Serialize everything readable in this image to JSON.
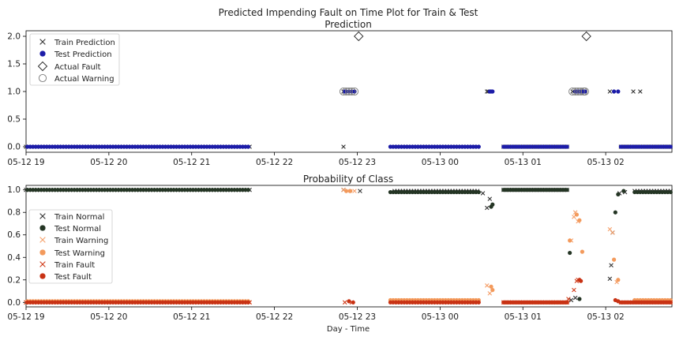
{
  "figure_title": "Predicted Impending Fault on Time Plot for Train & Test",
  "colors": {
    "train_prediction": "#333333",
    "test_prediction": "#1c1ca8",
    "actual_fault": "#333333",
    "actual_warning": "#7a7a7a",
    "train_normal": "#333333",
    "test_normal": "#243524",
    "train_warning": "#f5a06b",
    "test_warning": "#f39a5c",
    "train_fault": "#d03a18",
    "test_fault": "#c83214"
  },
  "chart_data": [
    {
      "type": "scatter",
      "title": "Prediction",
      "xlabel": "",
      "ylabel": "",
      "x_type": "datetime",
      "x_ticks": [
        "05-12 19",
        "05-12 20",
        "05-12 21",
        "05-12 22",
        "05-12 23",
        "05-13 00",
        "05-13 01",
        "05-13 02"
      ],
      "xlim": [
        "2023-05-12T19:00",
        "2023-05-13T02:48"
      ],
      "ylim": [
        -0.1,
        2.1
      ],
      "y_ticks": [
        "0.0",
        "0.5",
        "1.0",
        "1.5",
        "2.0"
      ],
      "grid": false,
      "legend_position": "top-left",
      "series": [
        {
          "name": "Train Prediction",
          "marker": "x",
          "spans": [
            {
              "start": "2023-05-12T19:00",
              "end": "2023-05-12T21:42",
              "step_minutes": 2,
              "y": 0
            },
            {
              "start": "2023-05-12T23:27",
              "end": "2023-05-13T00:28",
              "step_minutes": 2,
              "y": 0
            },
            {
              "start": "2023-05-13T00:46",
              "end": "2023-05-13T01:32",
              "step_minutes": 2,
              "y": 0
            },
            {
              "start": "2023-05-13T02:11",
              "end": "2023-05-13T02:48",
              "step_minutes": 2,
              "y": 0
            }
          ],
          "points": [
            {
              "x": "2023-05-12T22:50",
              "y": 0
            },
            {
              "x": "2023-05-12T22:50",
              "y": 1
            },
            {
              "x": "2023-05-12T22:53",
              "y": 1
            },
            {
              "x": "2023-05-13T00:34",
              "y": 1
            },
            {
              "x": "2023-05-13T00:35",
              "y": 1
            },
            {
              "x": "2023-05-13T01:36",
              "y": 1
            },
            {
              "x": "2023-05-13T02:03",
              "y": 1
            },
            {
              "x": "2023-05-13T02:20",
              "y": 1
            },
            {
              "x": "2023-05-13T02:25",
              "y": 1
            }
          ]
        },
        {
          "name": "Test Prediction",
          "marker": "o",
          "spans": [
            {
              "start": "2023-05-12T19:01",
              "end": "2023-05-12T21:42",
              "step_minutes": 2,
              "y": 0
            },
            {
              "start": "2023-05-12T23:24",
              "end": "2023-05-13T00:28",
              "step_minutes": 2,
              "y": 0
            },
            {
              "start": "2023-05-13T00:46",
              "end": "2023-05-13T01:32",
              "step_minutes": 2,
              "y": 0
            },
            {
              "start": "2023-05-13T02:11",
              "end": "2023-05-13T02:48",
              "step_minutes": 2,
              "y": 0
            }
          ],
          "points": [
            {
              "x": "2023-05-12T22:51",
              "y": 1
            },
            {
              "x": "2023-05-12T22:52",
              "y": 1
            },
            {
              "x": "2023-05-12T22:54",
              "y": 1
            },
            {
              "x": "2023-05-12T22:56",
              "y": 1
            },
            {
              "x": "2023-05-12T22:58",
              "y": 1
            },
            {
              "x": "2023-05-13T00:36",
              "y": 1
            },
            {
              "x": "2023-05-13T00:37",
              "y": 1
            },
            {
              "x": "2023-05-13T00:38",
              "y": 1
            },
            {
              "x": "2023-05-13T01:38",
              "y": 1
            },
            {
              "x": "2023-05-13T01:39",
              "y": 1
            },
            {
              "x": "2023-05-13T01:40",
              "y": 1
            },
            {
              "x": "2023-05-13T01:41",
              "y": 1
            },
            {
              "x": "2023-05-13T01:42",
              "y": 1
            },
            {
              "x": "2023-05-13T01:43",
              "y": 1
            },
            {
              "x": "2023-05-13T01:44",
              "y": 1
            },
            {
              "x": "2023-05-13T01:45",
              "y": 1
            },
            {
              "x": "2023-05-13T02:06",
              "y": 1
            },
            {
              "x": "2023-05-13T02:09",
              "y": 1
            }
          ]
        },
        {
          "name": "Actual Fault",
          "marker": "D",
          "points": [
            {
              "x": "2023-05-12T23:01",
              "y": 2
            },
            {
              "x": "2023-05-13T01:46",
              "y": 2
            }
          ]
        },
        {
          "name": "Actual Warning",
          "marker": "O",
          "points": [
            {
              "x": "2023-05-12T22:50",
              "y": 1
            },
            {
              "x": "2023-05-12T22:52",
              "y": 1
            },
            {
              "x": "2023-05-12T22:54",
              "y": 1
            },
            {
              "x": "2023-05-12T22:56",
              "y": 1
            },
            {
              "x": "2023-05-12T22:58",
              "y": 1
            },
            {
              "x": "2023-05-13T01:36",
              "y": 1
            },
            {
              "x": "2023-05-13T01:38",
              "y": 1
            },
            {
              "x": "2023-05-13T01:40",
              "y": 1
            },
            {
              "x": "2023-05-13T01:42",
              "y": 1
            },
            {
              "x": "2023-05-13T01:44",
              "y": 1
            },
            {
              "x": "2023-05-13T01:45",
              "y": 1
            }
          ]
        }
      ]
    },
    {
      "type": "scatter",
      "title": "Probability of Class",
      "xlabel": "Day - Time",
      "ylabel": "",
      "x_type": "datetime",
      "x_ticks": [
        "05-12 19",
        "05-12 20",
        "05-12 21",
        "05-12 22",
        "05-12 23",
        "05-13 00",
        "05-13 01",
        "05-13 02"
      ],
      "xlim": [
        "2023-05-12T19:00",
        "2023-05-13T02:48"
      ],
      "ylim": [
        -0.04,
        1.04
      ],
      "y_ticks": [
        "0.0",
        "0.2",
        "0.4",
        "0.6",
        "0.8",
        "1.0"
      ],
      "grid": false,
      "legend_position": "center-left",
      "series": [
        {
          "name": "Train Normal",
          "marker": "x",
          "spans": [
            {
              "start": "2023-05-12T19:00",
              "end": "2023-05-12T21:42",
              "step_minutes": 2,
              "y": 1.0
            },
            {
              "start": "2023-05-12T23:27",
              "end": "2023-05-13T00:28",
              "step_minutes": 2,
              "y": 0.99
            },
            {
              "start": "2023-05-13T00:46",
              "end": "2023-05-13T01:32",
              "step_minutes": 2,
              "y": 1.0
            },
            {
              "start": "2023-05-13T02:21",
              "end": "2023-05-13T02:48",
              "step_minutes": 2,
              "y": 0.99
            }
          ],
          "points": [
            {
              "x": "2023-05-12T22:50",
              "y": 1.0
            },
            {
              "x": "2023-05-12T23:02",
              "y": 0.99
            },
            {
              "x": "2023-05-13T00:31",
              "y": 0.97
            },
            {
              "x": "2023-05-13T00:34",
              "y": 0.84
            },
            {
              "x": "2023-05-13T00:36",
              "y": 0.92
            },
            {
              "x": "2023-05-13T01:35",
              "y": 0.02
            },
            {
              "x": "2023-05-13T01:38",
              "y": 0.04
            },
            {
              "x": "2023-05-13T02:03",
              "y": 0.21
            },
            {
              "x": "2023-05-13T02:04",
              "y": 0.33
            },
            {
              "x": "2023-05-13T02:05",
              "y": 0.62
            },
            {
              "x": "2023-05-13T02:10",
              "y": 0.97
            },
            {
              "x": "2023-05-13T02:14",
              "y": 0.98
            }
          ]
        },
        {
          "name": "Test Normal",
          "marker": "o",
          "spans": [
            {
              "start": "2023-05-12T19:01",
              "end": "2023-05-12T21:42",
              "step_minutes": 2,
              "y": 1.0
            },
            {
              "start": "2023-05-12T23:24",
              "end": "2023-05-13T00:28",
              "step_minutes": 2,
              "y": 0.98
            },
            {
              "start": "2023-05-13T00:46",
              "end": "2023-05-13T01:32",
              "step_minutes": 2,
              "y": 1.0
            },
            {
              "start": "2023-05-13T02:21",
              "end": "2023-05-13T02:48",
              "step_minutes": 2,
              "y": 0.98
            }
          ],
          "points": [
            {
              "x": "2023-05-13T00:37",
              "y": 0.85
            },
            {
              "x": "2023-05-13T00:38",
              "y": 0.87
            },
            {
              "x": "2023-05-13T01:34",
              "y": 0.44
            },
            {
              "x": "2023-05-13T01:41",
              "y": 0.03
            },
            {
              "x": "2023-05-13T02:07",
              "y": 0.8
            },
            {
              "x": "2023-05-13T02:09",
              "y": 0.96
            },
            {
              "x": "2023-05-13T02:13",
              "y": 0.99
            }
          ]
        },
        {
          "name": "Train Warning",
          "marker": "x",
          "spans": [
            {
              "start": "2023-05-12T19:00",
              "end": "2023-05-12T21:42",
              "step_minutes": 2,
              "y": 0.0
            },
            {
              "start": "2023-05-12T23:27",
              "end": "2023-05-13T00:28",
              "step_minutes": 2,
              "y": 0.01
            },
            {
              "start": "2023-05-13T00:46",
              "end": "2023-05-13T01:32",
              "step_minutes": 2,
              "y": 0.0
            },
            {
              "start": "2023-05-13T02:21",
              "end": "2023-05-13T02:48",
              "step_minutes": 2,
              "y": 0.01
            }
          ],
          "points": [
            {
              "x": "2023-05-12T22:50",
              "y": 1.0
            },
            {
              "x": "2023-05-12T22:53",
              "y": 0.99
            },
            {
              "x": "2023-05-12T22:58",
              "y": 0.99
            },
            {
              "x": "2023-05-13T00:34",
              "y": 0.15
            },
            {
              "x": "2023-05-13T00:36",
              "y": 0.08
            },
            {
              "x": "2023-05-13T01:35",
              "y": 0.55
            },
            {
              "x": "2023-05-13T01:37",
              "y": 0.76
            },
            {
              "x": "2023-05-13T01:38",
              "y": 0.8
            },
            {
              "x": "2023-05-13T01:40",
              "y": 0.72
            },
            {
              "x": "2023-05-13T02:03",
              "y": 0.65
            },
            {
              "x": "2023-05-13T02:05",
              "y": 0.62
            },
            {
              "x": "2023-05-13T02:08",
              "y": 0.18
            }
          ]
        },
        {
          "name": "Test Warning",
          "marker": "o",
          "spans": [
            {
              "start": "2023-05-12T19:01",
              "end": "2023-05-12T21:42",
              "step_minutes": 2,
              "y": 0.01
            },
            {
              "start": "2023-05-12T23:24",
              "end": "2023-05-13T00:28",
              "step_minutes": 2,
              "y": 0.02
            },
            {
              "start": "2023-05-13T00:46",
              "end": "2023-05-13T01:32",
              "step_minutes": 2,
              "y": 0.0
            },
            {
              "start": "2023-05-13T02:21",
              "end": "2023-05-13T02:48",
              "step_minutes": 2,
              "y": 0.02
            }
          ],
          "points": [
            {
              "x": "2023-05-12T22:52",
              "y": 0.99
            },
            {
              "x": "2023-05-12T22:55",
              "y": 0.99
            },
            {
              "x": "2023-05-13T00:37",
              "y": 0.14
            },
            {
              "x": "2023-05-13T00:38",
              "y": 0.11
            },
            {
              "x": "2023-05-13T01:34",
              "y": 0.55
            },
            {
              "x": "2023-05-13T01:39",
              "y": 0.78
            },
            {
              "x": "2023-05-13T01:41",
              "y": 0.73
            },
            {
              "x": "2023-05-13T01:43",
              "y": 0.45
            },
            {
              "x": "2023-05-13T02:06",
              "y": 0.38
            },
            {
              "x": "2023-05-13T02:09",
              "y": 0.2
            }
          ]
        },
        {
          "name": "Train Fault",
          "marker": "x",
          "spans": [
            {
              "start": "2023-05-12T19:00",
              "end": "2023-05-12T21:42",
              "step_minutes": 2,
              "y": 0.0
            },
            {
              "start": "2023-05-12T23:27",
              "end": "2023-05-13T00:28",
              "step_minutes": 2,
              "y": 0.0
            },
            {
              "start": "2023-05-13T00:46",
              "end": "2023-05-13T01:32",
              "step_minutes": 2,
              "y": 0.0
            },
            {
              "start": "2023-05-13T02:11",
              "end": "2023-05-13T02:48",
              "step_minutes": 2,
              "y": 0.0
            }
          ],
          "points": [
            {
              "x": "2023-05-12T22:51",
              "y": 0.0
            },
            {
              "x": "2023-05-12T22:56",
              "y": 0.0
            },
            {
              "x": "2023-05-13T01:33",
              "y": 0.03
            },
            {
              "x": "2023-05-13T01:37",
              "y": 0.11
            },
            {
              "x": "2023-05-13T01:39",
              "y": 0.19
            },
            {
              "x": "2023-05-13T01:40",
              "y": 0.2
            }
          ]
        },
        {
          "name": "Test Fault",
          "marker": "o",
          "spans": [
            {
              "start": "2023-05-12T19:01",
              "end": "2023-05-12T21:42",
              "step_minutes": 2,
              "y": 0.0
            },
            {
              "start": "2023-05-12T23:24",
              "end": "2023-05-13T00:28",
              "step_minutes": 2,
              "y": 0.0
            },
            {
              "start": "2023-05-13T00:46",
              "end": "2023-05-13T01:32",
              "step_minutes": 2,
              "y": 0.0
            },
            {
              "start": "2023-05-13T02:11",
              "end": "2023-05-13T02:48",
              "step_minutes": 2,
              "y": 0.0
            }
          ],
          "points": [
            {
              "x": "2023-05-12T22:54",
              "y": 0.01
            },
            {
              "x": "2023-05-12T22:57",
              "y": 0.0
            },
            {
              "x": "2023-05-13T01:41",
              "y": 0.2
            },
            {
              "x": "2023-05-13T01:42",
              "y": 0.19
            },
            {
              "x": "2023-05-13T02:07",
              "y": 0.02
            },
            {
              "x": "2023-05-13T02:09",
              "y": 0.01
            }
          ]
        }
      ]
    }
  ]
}
